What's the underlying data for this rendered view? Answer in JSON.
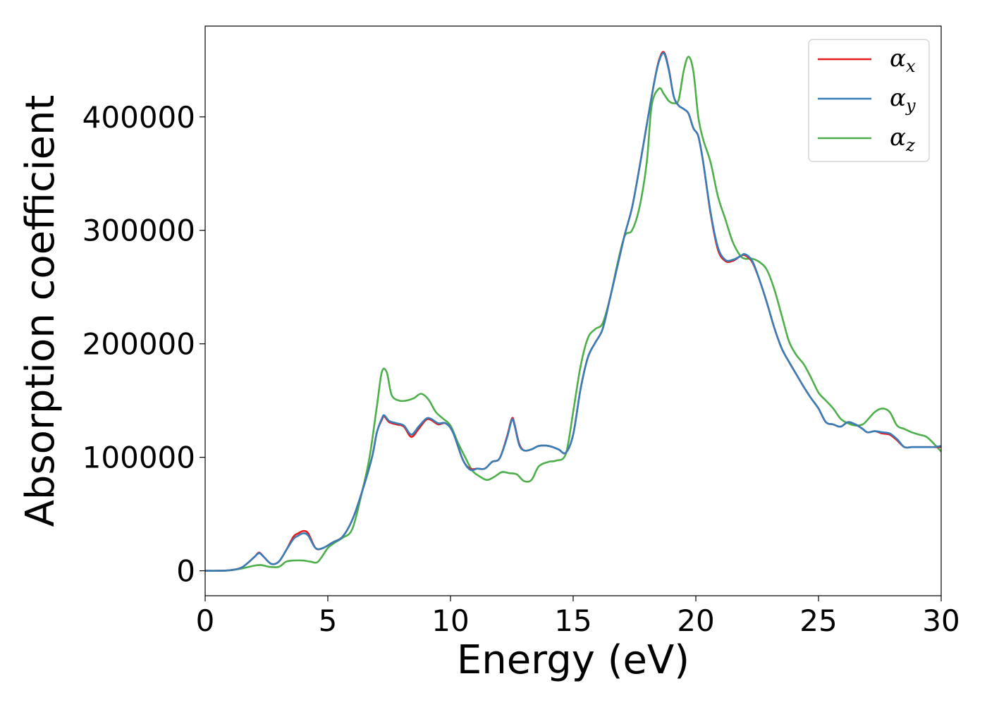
{
  "chart_data": {
    "type": "line",
    "title": "",
    "xlabel": "Energy (eV)",
    "ylabel": "Absorption coefficient",
    "xlim": [
      0,
      30
    ],
    "ylim": [
      -22000,
      480000
    ],
    "xticks": [
      0,
      5,
      10,
      15,
      20,
      25,
      30
    ],
    "yticks": [
      0,
      100000,
      200000,
      300000,
      400000
    ],
    "grid": false,
    "legend": "top-right",
    "series": [
      {
        "name": "α",
        "subscript": "x",
        "color": "#e41a1c",
        "x": [
          0,
          0.5,
          1.0,
          1.5,
          2.0,
          2.2,
          2.4,
          2.7,
          3.0,
          3.3,
          3.6,
          3.8,
          4.0,
          4.2,
          4.5,
          4.8,
          5.2,
          5.6,
          6.0,
          6.4,
          6.8,
          7.0,
          7.2,
          7.3,
          7.5,
          7.8,
          8.1,
          8.4,
          8.7,
          9.0,
          9.2,
          9.5,
          9.8,
          10.1,
          10.5,
          10.8,
          11.1,
          11.4,
          11.7,
          12.0,
          12.3,
          12.5,
          12.6,
          12.8,
          13.0,
          13.3,
          13.6,
          14.0,
          14.4,
          14.7,
          15.0,
          15.3,
          15.6,
          15.9,
          16.2,
          16.5,
          16.8,
          17.1,
          17.4,
          17.7,
          18.0,
          18.3,
          18.5,
          18.7,
          18.9,
          19.1,
          19.3,
          19.5,
          19.7,
          19.9,
          20.1,
          20.3,
          20.6,
          20.9,
          21.2,
          21.5,
          21.8,
          22.0,
          22.3,
          22.6,
          22.9,
          23.2,
          23.5,
          23.8,
          24.1,
          24.4,
          24.7,
          25.0,
          25.3,
          25.6,
          25.9,
          26.2,
          26.5,
          26.8,
          27.0,
          27.3,
          27.6,
          27.9,
          28.2,
          28.5,
          28.8,
          29.1,
          29.4,
          29.7,
          30.0
        ],
        "values": [
          0,
          0,
          500,
          3000,
          12000,
          16000,
          12000,
          6000,
          8000,
          18000,
          30000,
          33000,
          35000,
          33000,
          20000,
          20000,
          25000,
          30000,
          45000,
          70000,
          100000,
          122000,
          133000,
          136000,
          131000,
          129000,
          127000,
          118000,
          125000,
          133000,
          133000,
          129000,
          130000,
          122000,
          98000,
          90000,
          90000,
          90000,
          96000,
          99000,
          118000,
          134000,
          130000,
          112000,
          106000,
          107000,
          110000,
          110000,
          107000,
          104000,
          120000,
          160000,
          188000,
          201000,
          213000,
          240000,
          268000,
          296000,
          320000,
          355000,
          393000,
          430000,
          450000,
          457000,
          442000,
          418000,
          410000,
          407000,
          403000,
          390000,
          383000,
          360000,
          315000,
          283000,
          273000,
          273000,
          277000,
          278000,
          272000,
          256000,
          236000,
          214000,
          196000,
          184000,
          173000,
          162000,
          152000,
          143000,
          131000,
          129000,
          127000,
          131000,
          129000,
          125000,
          122000,
          123000,
          121000,
          120000,
          115000,
          109000,
          109000,
          109000,
          109000,
          109000,
          109000
        ]
      },
      {
        "name": "α",
        "subscript": "y",
        "color": "#377eb8",
        "x": [
          0,
          0.5,
          1.0,
          1.5,
          2.0,
          2.2,
          2.4,
          2.7,
          3.0,
          3.3,
          3.6,
          3.8,
          4.0,
          4.2,
          4.5,
          4.8,
          5.2,
          5.6,
          6.0,
          6.4,
          6.8,
          7.0,
          7.2,
          7.3,
          7.5,
          7.8,
          8.1,
          8.4,
          8.7,
          9.0,
          9.2,
          9.5,
          9.8,
          10.1,
          10.5,
          10.8,
          11.1,
          11.4,
          11.7,
          12.0,
          12.3,
          12.5,
          12.6,
          12.8,
          13.0,
          13.3,
          13.6,
          14.0,
          14.4,
          14.7,
          15.0,
          15.3,
          15.6,
          15.9,
          16.2,
          16.5,
          16.8,
          17.1,
          17.4,
          17.7,
          18.0,
          18.3,
          18.5,
          18.7,
          18.9,
          19.1,
          19.3,
          19.5,
          19.7,
          19.9,
          20.1,
          20.3,
          20.6,
          20.9,
          21.2,
          21.5,
          21.8,
          22.0,
          22.3,
          22.6,
          22.9,
          23.2,
          23.5,
          23.8,
          24.1,
          24.4,
          24.7,
          25.0,
          25.3,
          25.6,
          25.9,
          26.2,
          26.5,
          26.8,
          27.0,
          27.3,
          27.6,
          27.9,
          28.2,
          28.5,
          28.8,
          29.1,
          29.4,
          29.7,
          30.0
        ],
        "values": [
          0,
          0,
          500,
          3000,
          12000,
          15500,
          12000,
          6000,
          8000,
          18000,
          28000,
          31000,
          33000,
          31000,
          20000,
          20000,
          25000,
          30000,
          45000,
          70000,
          100000,
          122000,
          134000,
          137000,
          132000,
          130000,
          128000,
          120000,
          127000,
          134000,
          134000,
          130000,
          130000,
          122000,
          98000,
          89000,
          90000,
          90000,
          96000,
          99000,
          117000,
          133000,
          129000,
          111000,
          106000,
          107000,
          110000,
          110000,
          107000,
          104000,
          120000,
          160000,
          188000,
          201000,
          213000,
          240000,
          268000,
          296000,
          320000,
          355000,
          393000,
          430000,
          449000,
          456000,
          441000,
          418000,
          410000,
          407000,
          403000,
          390000,
          383000,
          360000,
          316000,
          285000,
          274000,
          274000,
          277000,
          279000,
          273000,
          256000,
          236000,
          214000,
          196000,
          184000,
          173000,
          162000,
          152000,
          143000,
          131000,
          129000,
          127000,
          131000,
          129000,
          125000,
          122000,
          123000,
          122000,
          121000,
          116000,
          109000,
          109000,
          109000,
          109000,
          109000,
          110000
        ]
      },
      {
        "name": "α",
        "subscript": "z",
        "color": "#4daf4a",
        "x": [
          0,
          0.5,
          1.0,
          1.5,
          2.0,
          2.3,
          2.6,
          3.0,
          3.3,
          3.6,
          4.0,
          4.3,
          4.6,
          5.0,
          5.3,
          5.6,
          6.0,
          6.4,
          6.7,
          7.0,
          7.2,
          7.4,
          7.6,
          7.9,
          8.2,
          8.5,
          8.8,
          9.1,
          9.4,
          9.7,
          10.0,
          10.3,
          10.6,
          10.9,
          11.2,
          11.5,
          11.8,
          12.1,
          12.4,
          12.7,
          13.0,
          13.3,
          13.6,
          14.0,
          14.3,
          14.7,
          15.0,
          15.3,
          15.6,
          15.9,
          16.2,
          16.5,
          16.8,
          17.1,
          17.4,
          17.7,
          18.0,
          18.2,
          18.5,
          18.7,
          18.9,
          19.1,
          19.3,
          19.5,
          19.7,
          19.9,
          20.1,
          20.3,
          20.6,
          20.9,
          21.2,
          21.5,
          21.8,
          22.0,
          22.3,
          22.6,
          22.9,
          23.2,
          23.5,
          23.8,
          24.1,
          24.4,
          24.7,
          25.0,
          25.3,
          25.6,
          25.9,
          26.2,
          26.5,
          26.8,
          27.0,
          27.3,
          27.6,
          27.9,
          28.2,
          28.5,
          28.8,
          29.1,
          29.4,
          29.7,
          30.0
        ],
        "values": [
          0,
          0,
          300,
          2000,
          4500,
          5000,
          3500,
          3500,
          8000,
          9000,
          9000,
          8000,
          8000,
          20000,
          25000,
          29000,
          37000,
          70000,
          100000,
          145000,
          175000,
          175000,
          155000,
          150000,
          150000,
          152000,
          156000,
          151000,
          140000,
          134000,
          128000,
          113000,
          100000,
          88000,
          83000,
          80000,
          83000,
          87000,
          86000,
          85000,
          79000,
          80000,
          92000,
          96000,
          97000,
          103000,
          140000,
          180000,
          205000,
          213000,
          218000,
          240000,
          270000,
          295000,
          300000,
          320000,
          360000,
          410000,
          425000,
          420000,
          414000,
          412000,
          415000,
          440000,
          453000,
          440000,
          400000,
          380000,
          360000,
          330000,
          310000,
          290000,
          278000,
          275000,
          275000,
          272000,
          265000,
          248000,
          225000,
          202000,
          190000,
          182000,
          170000,
          157000,
          150000,
          143000,
          134000,
          130000,
          128000,
          129000,
          133000,
          140000,
          143000,
          140000,
          128000,
          125000,
          122000,
          120000,
          118000,
          112000,
          105000
        ]
      }
    ]
  }
}
